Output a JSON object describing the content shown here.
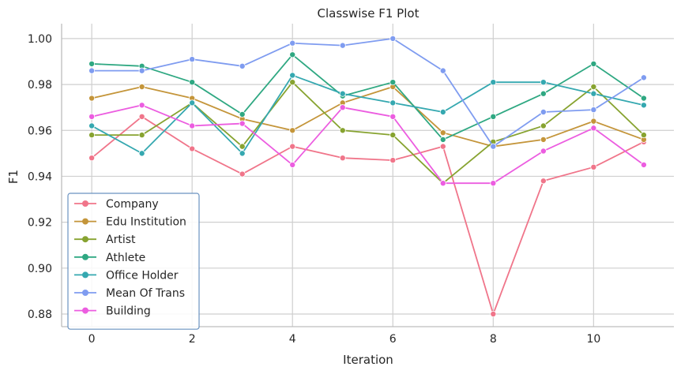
{
  "chart_data": {
    "type": "line",
    "title": "Classwise F1 Plot",
    "xlabel": "Iteration",
    "ylabel": "F1",
    "x": [
      0,
      1,
      2,
      3,
      4,
      5,
      6,
      7,
      8,
      9,
      10,
      11
    ],
    "xticks": [
      0,
      2,
      4,
      6,
      8,
      10
    ],
    "yticks": [
      0.88,
      0.9,
      0.92,
      0.94,
      0.96,
      0.98,
      1.0
    ],
    "ytick_labels": [
      "0.88",
      "0.90",
      "0.92",
      "0.94",
      "0.96",
      "0.98",
      "1.00"
    ],
    "xlim": [
      -0.6,
      11.6
    ],
    "ylim": [
      0.8745,
      1.0065
    ],
    "grid": true,
    "legend_position": "lower-left",
    "series": [
      {
        "name": "Company",
        "color": "#f0758a",
        "values": [
          0.948,
          0.966,
          0.952,
          0.941,
          0.953,
          0.948,
          0.947,
          0.953,
          0.88,
          0.938,
          0.944,
          0.955
        ]
      },
      {
        "name": "Edu Institution",
        "color": "#c4953a",
        "values": [
          0.974,
          0.979,
          0.974,
          0.965,
          0.96,
          0.972,
          0.979,
          0.959,
          0.953,
          0.956,
          0.964,
          0.956
        ]
      },
      {
        "name": "Artist",
        "color": "#87a330",
        "values": [
          0.958,
          0.958,
          0.972,
          0.953,
          0.981,
          0.96,
          0.958,
          0.937,
          0.955,
          0.962,
          0.979,
          0.958
        ]
      },
      {
        "name": "Athlete",
        "color": "#2fa882",
        "values": [
          0.989,
          0.988,
          0.981,
          0.967,
          0.993,
          0.975,
          0.981,
          0.956,
          0.966,
          0.976,
          0.989,
          0.974
        ]
      },
      {
        "name": "Office Holder",
        "color": "#35a8b0",
        "values": [
          0.962,
          0.95,
          0.972,
          0.95,
          0.984,
          0.976,
          0.972,
          0.968,
          0.981,
          0.981,
          0.976,
          0.971
        ]
      },
      {
        "name": "Mean Of Trans",
        "color": "#7f9cf0",
        "values": [
          0.986,
          0.986,
          0.991,
          0.988,
          0.998,
          0.997,
          1.0,
          0.986,
          0.953,
          0.968,
          0.969,
          0.983
        ]
      },
      {
        "name": "Building",
        "color": "#ec5de0",
        "values": [
          0.966,
          0.971,
          0.962,
          0.963,
          0.945,
          0.97,
          0.966,
          0.937,
          0.937,
          0.951,
          0.961,
          0.945
        ]
      }
    ]
  }
}
